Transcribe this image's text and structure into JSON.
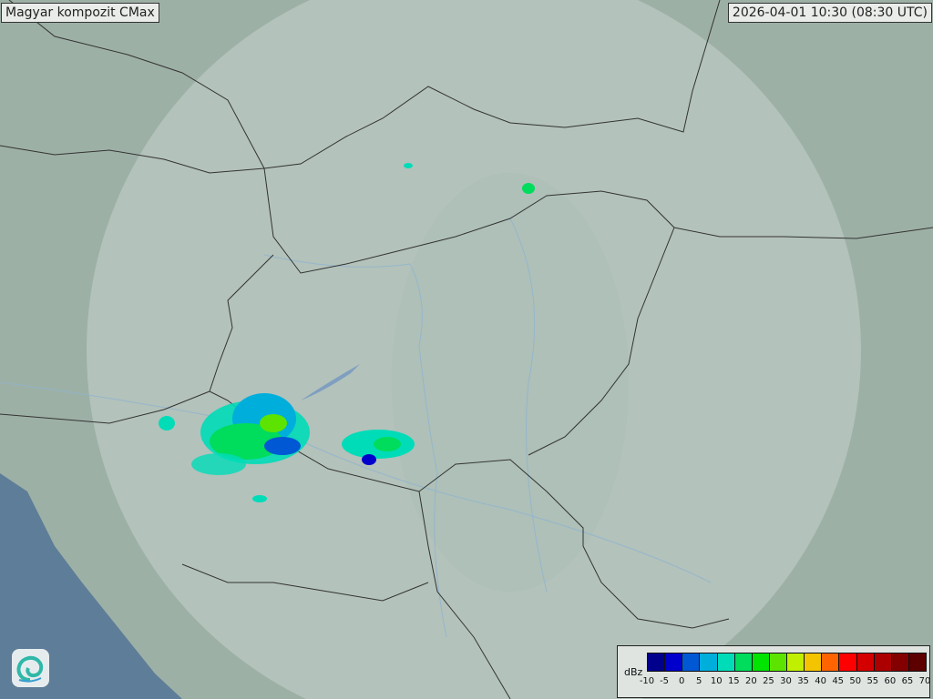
{
  "header": {
    "title": "Magyar kompozit  CMax",
    "timestamp": "2026-04-01 10:30 (08:30 UTC)"
  },
  "legend": {
    "unit": "dBz",
    "ticks": [
      "-10",
      "-5",
      "0",
      "5",
      "10",
      "15",
      "20",
      "25",
      "30",
      "35",
      "40",
      "45",
      "50",
      "55",
      "60",
      "65",
      "70"
    ],
    "colors": [
      "#00008c",
      "#0000cc",
      "#0058d4",
      "#00aedc",
      "#00dcb8",
      "#00dc5c",
      "#00e400",
      "#5ce400",
      "#c0f000",
      "#f4c400",
      "#ff6400",
      "#ff0000",
      "#d40000",
      "#ac0000",
      "#840000",
      "#5c0000"
    ]
  },
  "colors": {
    "land": "#9db0a6",
    "radar_coverage": "#b9c8c2",
    "sea": "#5d7d98",
    "border": "#3a3a3a"
  },
  "logo": {
    "icon": "swirl-logo-icon"
  }
}
